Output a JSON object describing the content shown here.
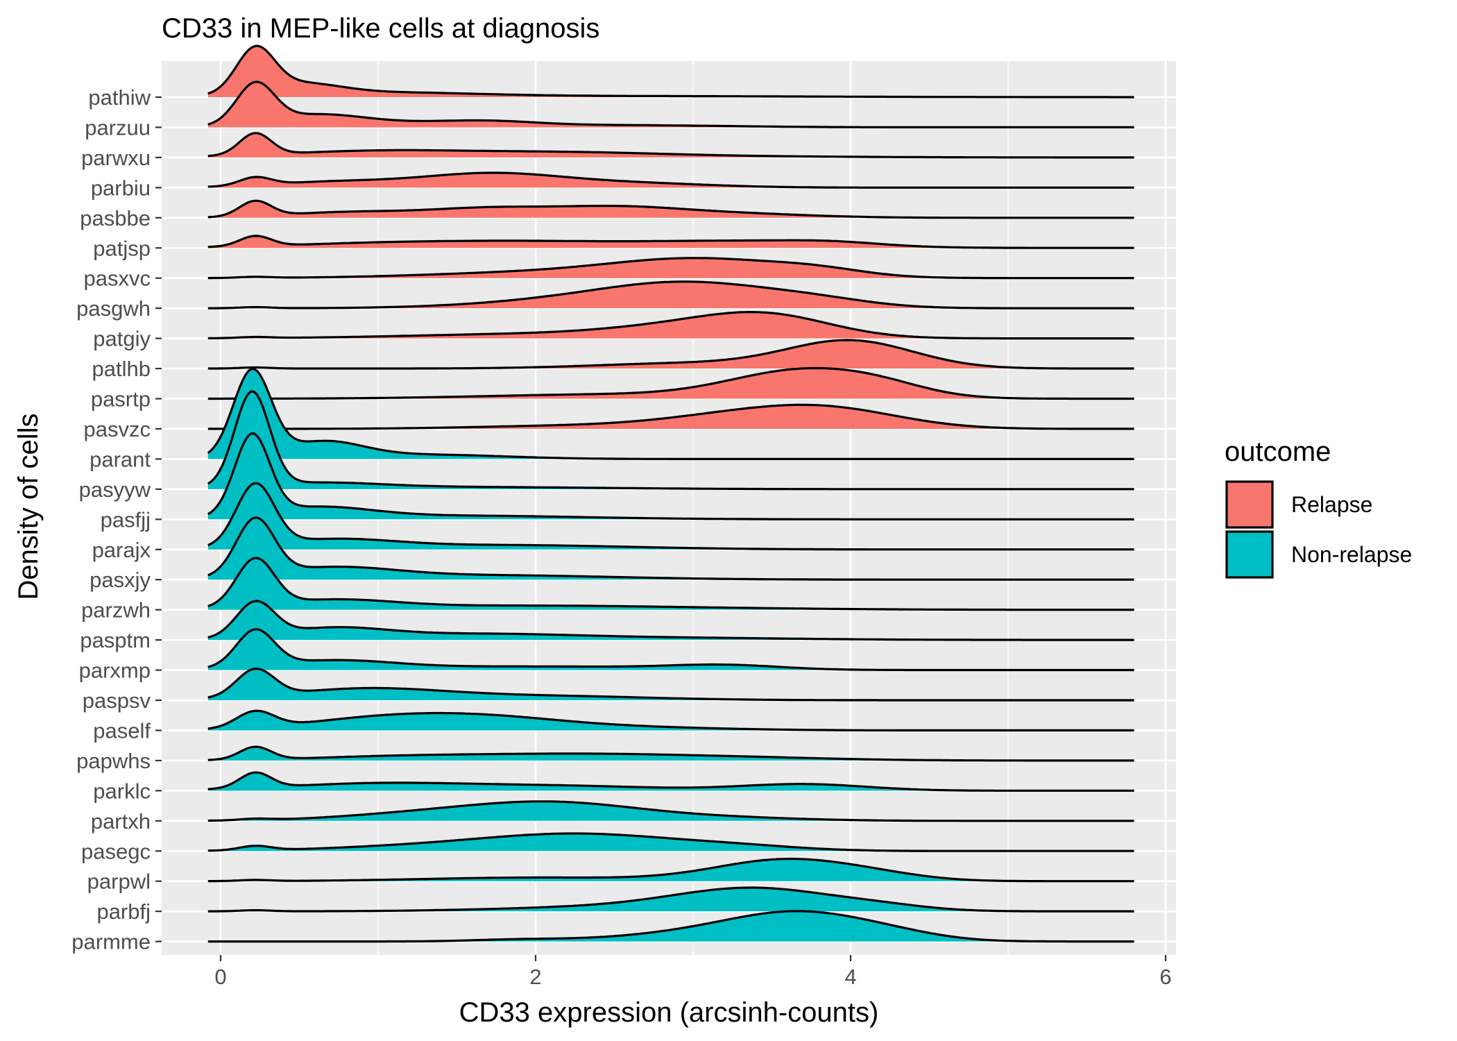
{
  "chart_data": {
    "type": "ridgeline",
    "title": "CD33 in MEP-like cells at diagnosis",
    "xlabel": "CD33 expression (arcsinh-counts)",
    "ylabel": "Density of cells",
    "xlim": [
      -0.37,
      6.1
    ],
    "x_ticks": [
      0,
      2,
      4,
      6
    ],
    "grid": true,
    "legend": {
      "title": "outcome",
      "position": "right",
      "entries": [
        {
          "label": "Relapse",
          "color": "#F8766D"
        },
        {
          "label": "Non-relapse",
          "color": "#00BFC4"
        }
      ]
    },
    "colors": {
      "Relapse": "#F8766D",
      "Non-relapse": "#00BFC4"
    },
    "density_x_range": [
      -0.08,
      5.8
    ],
    "series": [
      {
        "name": "pathiw",
        "outcome": "Relapse",
        "peaks": [
          [
            0.22,
            1.2,
            0.12
          ],
          [
            0.5,
            0.3,
            0.25
          ],
          [
            1.0,
            0.12,
            0.6
          ],
          [
            2.5,
            0.03,
            1.2
          ]
        ]
      },
      {
        "name": "parzuu",
        "outcome": "Relapse",
        "peaks": [
          [
            0.22,
            1.1,
            0.12
          ],
          [
            0.6,
            0.3,
            0.3
          ],
          [
            1.3,
            0.12,
            0.6
          ],
          [
            1.7,
            0.08,
            0.3
          ],
          [
            2.7,
            0.05,
            0.6
          ]
        ]
      },
      {
        "name": "parwxu",
        "outcome": "Relapse",
        "peaks": [
          [
            0.22,
            0.6,
            0.1
          ],
          [
            1.0,
            0.18,
            0.6
          ],
          [
            2.2,
            0.12,
            0.6
          ],
          [
            3.2,
            0.03,
            0.8
          ]
        ]
      },
      {
        "name": "parbiu",
        "outcome": "Relapse",
        "peaks": [
          [
            0.22,
            0.22,
            0.1
          ],
          [
            0.7,
            0.15,
            0.4
          ],
          [
            1.7,
            0.38,
            0.45
          ],
          [
            2.6,
            0.12,
            0.5
          ]
        ]
      },
      {
        "name": "pasbbe",
        "outcome": "Relapse",
        "peaks": [
          [
            0.22,
            0.42,
            0.1
          ],
          [
            0.8,
            0.15,
            0.4
          ],
          [
            1.7,
            0.25,
            0.4
          ],
          [
            2.5,
            0.25,
            0.4
          ],
          [
            3.2,
            0.12,
            0.5
          ]
        ]
      },
      {
        "name": "patjsp",
        "outcome": "Relapse",
        "peaks": [
          [
            0.22,
            0.28,
            0.1
          ],
          [
            1.0,
            0.12,
            0.6
          ],
          [
            2.0,
            0.15,
            0.6
          ],
          [
            3.3,
            0.18,
            0.6
          ],
          [
            3.9,
            0.08,
            0.3
          ]
        ]
      },
      {
        "name": "pasxvc",
        "outcome": "Relapse",
        "peaks": [
          [
            0.22,
            0.03,
            0.1
          ],
          [
            2.0,
            0.15,
            0.7
          ],
          [
            3.05,
            0.5,
            0.55
          ],
          [
            3.8,
            0.15,
            0.3
          ]
        ]
      },
      {
        "name": "pasgwh",
        "outcome": "Relapse",
        "peaks": [
          [
            0.22,
            0.03,
            0.1
          ],
          [
            2.2,
            0.18,
            0.6
          ],
          [
            3.0,
            0.65,
            0.55
          ],
          [
            3.8,
            0.15,
            0.35
          ]
        ]
      },
      {
        "name": "patgiy",
        "outcome": "Relapse",
        "peaks": [
          [
            0.22,
            0.03,
            0.1
          ],
          [
            2.0,
            0.12,
            0.8
          ],
          [
            3.0,
            0.3,
            0.5
          ],
          [
            3.5,
            0.5,
            0.4
          ]
        ]
      },
      {
        "name": "patlhb",
        "outcome": "Relapse",
        "peaks": [
          [
            0.22,
            0.03,
            0.1
          ],
          [
            3.0,
            0.15,
            0.6
          ],
          [
            4.0,
            0.75,
            0.4
          ]
        ]
      },
      {
        "name": "pasrtp",
        "outcome": "Relapse",
        "peaks": [
          [
            2.5,
            0.12,
            0.8
          ],
          [
            3.7,
            0.75,
            0.45
          ],
          [
            4.2,
            0.2,
            0.3
          ]
        ]
      },
      {
        "name": "pasvzc",
        "outcome": "Relapse",
        "peaks": [
          [
            2.2,
            0.08,
            0.6
          ],
          [
            3.3,
            0.35,
            0.5
          ],
          [
            3.9,
            0.45,
            0.45
          ]
        ]
      },
      {
        "name": "parant",
        "outcome": "Non-relapse",
        "peaks": [
          [
            0.2,
            2.4,
            0.12
          ],
          [
            0.65,
            0.45,
            0.25
          ],
          [
            1.3,
            0.12,
            0.5
          ]
        ]
      },
      {
        "name": "pasyyw",
        "outcome": "Non-relapse",
        "peaks": [
          [
            0.2,
            2.6,
            0.11
          ],
          [
            0.6,
            0.15,
            0.4
          ],
          [
            1.5,
            0.06,
            0.9
          ]
        ]
      },
      {
        "name": "pasfjj",
        "outcome": "Non-relapse",
        "peaks": [
          [
            0.2,
            2.2,
            0.11
          ],
          [
            0.6,
            0.3,
            0.35
          ],
          [
            1.5,
            0.1,
            0.8
          ]
        ]
      },
      {
        "name": "parajx",
        "outcome": "Non-relapse",
        "peaks": [
          [
            0.22,
            1.7,
            0.12
          ],
          [
            0.7,
            0.25,
            0.4
          ],
          [
            1.8,
            0.12,
            0.8
          ]
        ]
      },
      {
        "name": "pasxjy",
        "outcome": "Non-relapse",
        "peaks": [
          [
            0.22,
            1.55,
            0.12
          ],
          [
            0.7,
            0.3,
            0.4
          ],
          [
            1.7,
            0.12,
            0.8
          ]
        ]
      },
      {
        "name": "parzwh",
        "outcome": "Non-relapse",
        "peaks": [
          [
            0.22,
            1.3,
            0.12
          ],
          [
            0.7,
            0.25,
            0.4
          ],
          [
            1.8,
            0.1,
            0.8
          ],
          [
            3.0,
            0.04,
            0.8
          ]
        ]
      },
      {
        "name": "pasptm",
        "outcome": "Non-relapse",
        "peaks": [
          [
            0.22,
            0.95,
            0.12
          ],
          [
            0.7,
            0.3,
            0.35
          ],
          [
            1.6,
            0.15,
            0.6
          ],
          [
            2.8,
            0.06,
            0.8
          ]
        ]
      },
      {
        "name": "parxmp",
        "outcome": "Non-relapse",
        "peaks": [
          [
            0.22,
            1.0,
            0.12
          ],
          [
            0.7,
            0.25,
            0.4
          ],
          [
            2.0,
            0.1,
            0.8
          ],
          [
            3.2,
            0.12,
            0.35
          ]
        ]
      },
      {
        "name": "paspsv",
        "outcome": "Non-relapse",
        "peaks": [
          [
            0.22,
            0.75,
            0.12
          ],
          [
            0.9,
            0.3,
            0.5
          ],
          [
            2.0,
            0.12,
            0.7
          ]
        ]
      },
      {
        "name": "paself",
        "outcome": "Non-relapse",
        "peaks": [
          [
            0.22,
            0.45,
            0.12
          ],
          [
            1.0,
            0.3,
            0.5
          ],
          [
            1.7,
            0.3,
            0.5
          ],
          [
            2.6,
            0.08,
            0.6
          ]
        ]
      },
      {
        "name": "papwhs",
        "outcome": "Non-relapse",
        "peaks": [
          [
            0.22,
            0.35,
            0.1
          ],
          [
            1.2,
            0.12,
            0.6
          ],
          [
            2.3,
            0.15,
            0.6
          ],
          [
            3.3,
            0.08,
            0.6
          ]
        ]
      },
      {
        "name": "parklc",
        "outcome": "Non-relapse",
        "peaks": [
          [
            0.22,
            0.42,
            0.1
          ],
          [
            1.0,
            0.2,
            0.6
          ],
          [
            2.2,
            0.12,
            0.6
          ],
          [
            3.7,
            0.18,
            0.4
          ]
        ]
      },
      {
        "name": "partxh",
        "outcome": "Non-relapse",
        "peaks": [
          [
            0.22,
            0.04,
            0.1
          ],
          [
            1.2,
            0.15,
            0.5
          ],
          [
            2.1,
            0.5,
            0.55
          ],
          [
            3.2,
            0.08,
            0.5
          ]
        ]
      },
      {
        "name": "pasegc",
        "outcome": "Non-relapse",
        "peaks": [
          [
            0.22,
            0.12,
            0.1
          ],
          [
            1.3,
            0.12,
            0.6
          ],
          [
            2.3,
            0.45,
            0.6
          ],
          [
            3.3,
            0.1,
            0.4
          ]
        ]
      },
      {
        "name": "parpwl",
        "outcome": "Non-relapse",
        "peaks": [
          [
            0.22,
            0.03,
            0.1
          ],
          [
            2.0,
            0.1,
            0.7
          ],
          [
            3.6,
            0.6,
            0.45
          ],
          [
            4.2,
            0.08,
            0.3
          ]
        ]
      },
      {
        "name": "parbfj",
        "outcome": "Non-relapse",
        "peaks": [
          [
            0.22,
            0.03,
            0.1
          ],
          [
            2.5,
            0.12,
            0.7
          ],
          [
            3.4,
            0.6,
            0.5
          ],
          [
            4.2,
            0.1,
            0.3
          ]
        ]
      },
      {
        "name": "parmme",
        "outcome": "Non-relapse",
        "peaks": [
          [
            1.9,
            0.05,
            0.3
          ],
          [
            3.0,
            0.2,
            0.5
          ],
          [
            3.7,
            0.75,
            0.45
          ],
          [
            4.3,
            0.1,
            0.3
          ]
        ]
      }
    ]
  }
}
